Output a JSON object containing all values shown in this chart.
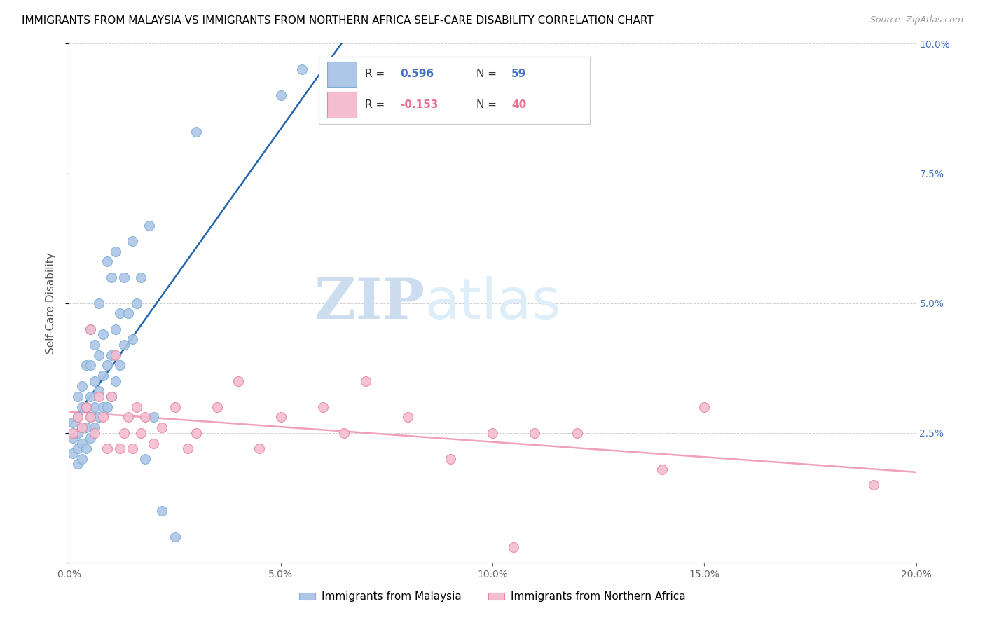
{
  "title": "IMMIGRANTS FROM MALAYSIA VS IMMIGRANTS FROM NORTHERN AFRICA SELF-CARE DISABILITY CORRELATION CHART",
  "source": "Source: ZipAtlas.com",
  "ylabel": "Self-Care Disability",
  "xlim": [
    0,
    0.2
  ],
  "ylim": [
    0,
    0.1
  ],
  "xticks": [
    0.0,
    0.05,
    0.1,
    0.15,
    0.2
  ],
  "yticks": [
    0.0,
    0.025,
    0.05,
    0.075,
    0.1
  ],
  "malaysia_color": "#aec6e8",
  "malaysia_edge_color": "#7aafd4",
  "northern_africa_color": "#f5bdd0",
  "northern_africa_edge_color": "#e8879e",
  "line_malaysia_color": "#2166ac",
  "line_northern_africa_color": "#f0a0b8",
  "R_malaysia": 0.596,
  "N_malaysia": 59,
  "R_northern_africa": -0.153,
  "N_northern_africa": 40,
  "watermark_zip": "ZIP",
  "watermark_atlas": "atlas",
  "malaysia_x": [
    0.001,
    0.001,
    0.001,
    0.002,
    0.002,
    0.002,
    0.002,
    0.002,
    0.003,
    0.003,
    0.003,
    0.003,
    0.003,
    0.004,
    0.004,
    0.004,
    0.004,
    0.005,
    0.005,
    0.005,
    0.005,
    0.005,
    0.006,
    0.006,
    0.006,
    0.006,
    0.007,
    0.007,
    0.007,
    0.007,
    0.008,
    0.008,
    0.008,
    0.009,
    0.009,
    0.009,
    0.01,
    0.01,
    0.01,
    0.011,
    0.011,
    0.011,
    0.012,
    0.012,
    0.013,
    0.013,
    0.014,
    0.015,
    0.015,
    0.016,
    0.017,
    0.018,
    0.019,
    0.02,
    0.022,
    0.025,
    0.03,
    0.05,
    0.055
  ],
  "malaysia_y": [
    0.021,
    0.024,
    0.027,
    0.019,
    0.022,
    0.025,
    0.028,
    0.032,
    0.02,
    0.023,
    0.026,
    0.03,
    0.034,
    0.022,
    0.026,
    0.03,
    0.038,
    0.024,
    0.028,
    0.032,
    0.038,
    0.045,
    0.026,
    0.03,
    0.035,
    0.042,
    0.028,
    0.033,
    0.04,
    0.05,
    0.03,
    0.036,
    0.044,
    0.03,
    0.038,
    0.058,
    0.032,
    0.04,
    0.055,
    0.035,
    0.045,
    0.06,
    0.038,
    0.048,
    0.042,
    0.055,
    0.048,
    0.043,
    0.062,
    0.05,
    0.055,
    0.02,
    0.065,
    0.028,
    0.01,
    0.005,
    0.083,
    0.09,
    0.095
  ],
  "northern_africa_x": [
    0.001,
    0.002,
    0.003,
    0.004,
    0.005,
    0.005,
    0.006,
    0.007,
    0.008,
    0.009,
    0.01,
    0.011,
    0.012,
    0.013,
    0.014,
    0.015,
    0.016,
    0.017,
    0.018,
    0.02,
    0.022,
    0.025,
    0.028,
    0.03,
    0.035,
    0.04,
    0.045,
    0.05,
    0.06,
    0.065,
    0.07,
    0.08,
    0.09,
    0.1,
    0.105,
    0.11,
    0.12,
    0.14,
    0.15,
    0.19
  ],
  "northern_africa_y": [
    0.025,
    0.028,
    0.026,
    0.03,
    0.028,
    0.045,
    0.025,
    0.032,
    0.028,
    0.022,
    0.032,
    0.04,
    0.022,
    0.025,
    0.028,
    0.022,
    0.03,
    0.025,
    0.028,
    0.023,
    0.026,
    0.03,
    0.022,
    0.025,
    0.03,
    0.035,
    0.022,
    0.028,
    0.03,
    0.025,
    0.035,
    0.028,
    0.02,
    0.025,
    0.003,
    0.025,
    0.025,
    0.018,
    0.03,
    0.015
  ]
}
